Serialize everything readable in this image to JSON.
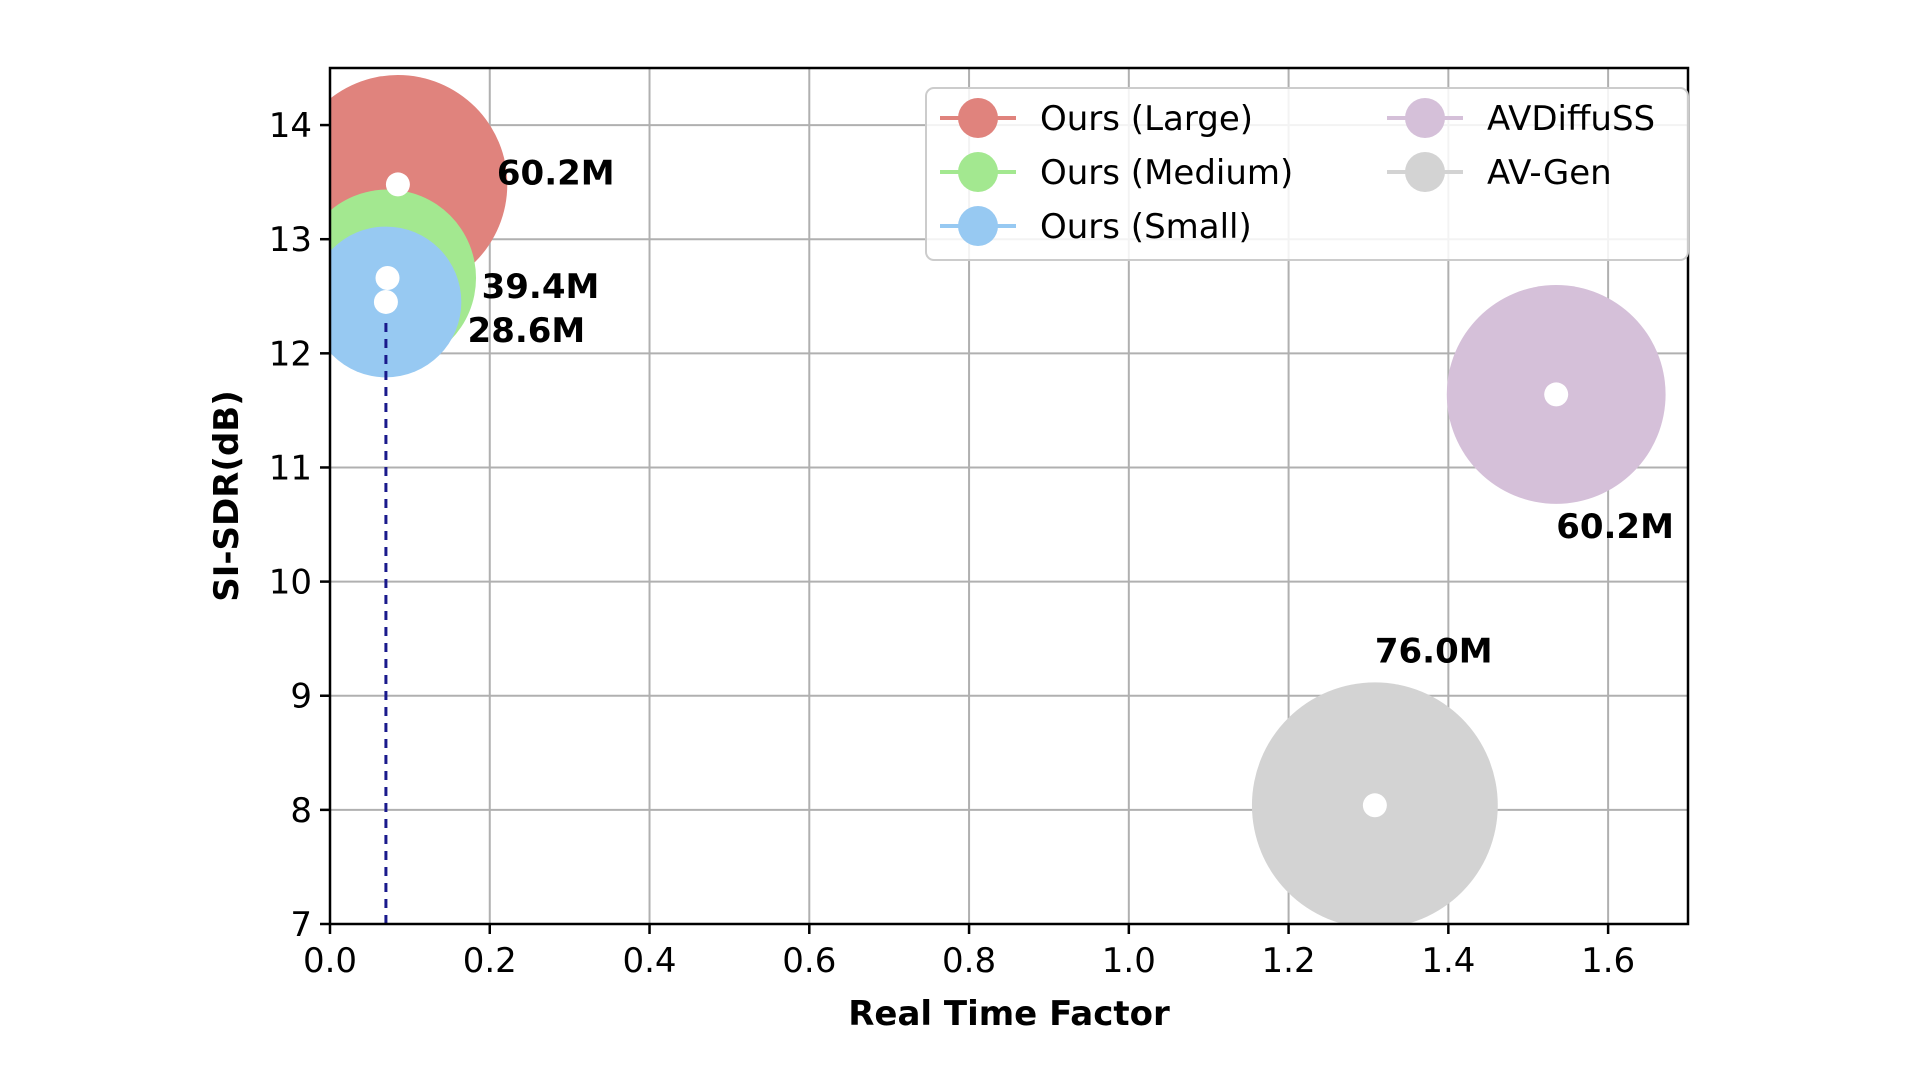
{
  "chart_data": {
    "type": "scatter",
    "xlabel": "Real Time Factor",
    "ylabel": "SI-SDR(dB)",
    "xlim": [
      0.0,
      1.7
    ],
    "ylim": [
      7,
      14.5
    ],
    "x_ticks": [
      "0.0",
      "0.2",
      "0.4",
      "0.6",
      "0.8",
      "1.0",
      "1.2",
      "1.4",
      "1.6"
    ],
    "y_ticks": [
      "7",
      "8",
      "9",
      "10",
      "11",
      "12",
      "13",
      "14"
    ],
    "grid": true,
    "legend_position": "top-right",
    "legend_columns": 2,
    "series": [
      {
        "name": "Ours (Large)",
        "x": 0.085,
        "y": 13.48,
        "size_label": "60.2M",
        "params_m": 60.2,
        "color": "#e0837d",
        "label_position": "right"
      },
      {
        "name": "Ours (Medium)",
        "x": 0.072,
        "y": 12.66,
        "size_label": "39.4M",
        "params_m": 39.4,
        "color": "#a3e890",
        "label_position": "lower-right"
      },
      {
        "name": "Ours (Small)",
        "x": 0.07,
        "y": 12.45,
        "size_label": "28.6M",
        "params_m": 28.6,
        "color": "#97c9f2",
        "label_position": "lower-right"
      },
      {
        "name": "AVDiffuSS",
        "x": 1.535,
        "y": 11.64,
        "size_label": "60.2M",
        "params_m": 60.2,
        "color": "#d5c0d9",
        "label_position": "below"
      },
      {
        "name": "AV-Gen",
        "x": 1.308,
        "y": 8.04,
        "size_label": "76.0M",
        "params_m": 76.0,
        "color": "#d3d3d3",
        "label_position": "above"
      }
    ],
    "reference_line": {
      "x": 0.07,
      "y_from": 7,
      "y_to": 12.3,
      "style": "dashed",
      "color": "#1a1a8c"
    }
  }
}
